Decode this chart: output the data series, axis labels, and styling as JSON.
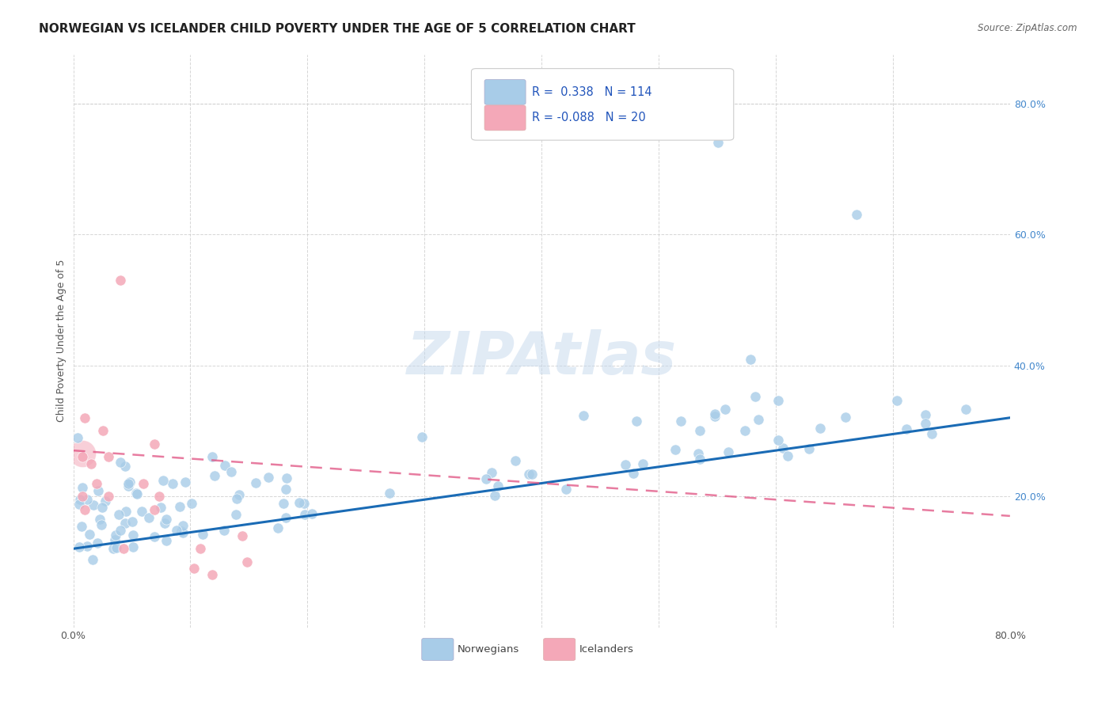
{
  "title": "NORWEGIAN VS ICELANDER CHILD POVERTY UNDER THE AGE OF 5 CORRELATION CHART",
  "source": "Source: ZipAtlas.com",
  "ylabel": "Child Poverty Under the Age of 5",
  "xlim": [
    0.0,
    0.8
  ],
  "ylim": [
    0.0,
    0.875
  ],
  "norwegian_color": "#a8cce8",
  "icelander_color": "#f4a8b8",
  "norwegian_line_color": "#1a6bb5",
  "icelander_line_color": "#e05080",
  "r_norwegian": 0.338,
  "n_norwegian": 114,
  "r_icelander": -0.088,
  "n_icelander": 20,
  "watermark": "ZIPAtlas",
  "background_color": "#ffffff",
  "grid_color": "#cccccc",
  "legend_norwegian": "Norwegians",
  "legend_icelander": "Icelanders",
  "title_fontsize": 11,
  "axis_fontsize": 9,
  "tick_fontsize": 9
}
